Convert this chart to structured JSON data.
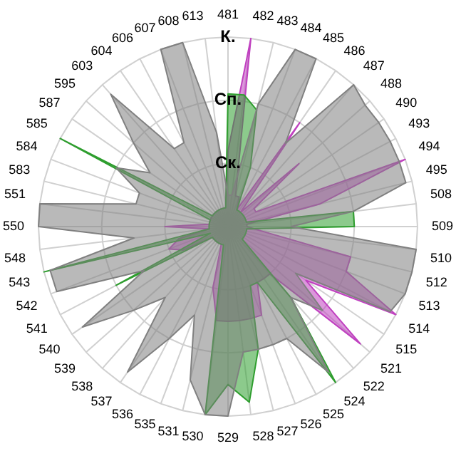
{
  "chart_data": {
    "type": "radar",
    "categories": [
      "481",
      "482",
      "483",
      "484",
      "485",
      "486",
      "487",
      "488",
      "490",
      "493",
      "494",
      "495",
      "508",
      "509",
      "510",
      "512",
      "513",
      "514",
      "515",
      "521",
      "522",
      "524",
      "525",
      "526",
      "527",
      "528",
      "529",
      "530",
      "531",
      "535",
      "536",
      "537",
      "538",
      "539",
      "540",
      "541",
      "542",
      "543",
      "548",
      "550",
      "551",
      "583",
      "584",
      "585",
      "587",
      "595",
      "603",
      "604",
      "606",
      "607",
      "608",
      "613"
    ],
    "ylim": [
      0,
      3
    ],
    "yticks": [
      {
        "value": 1,
        "label": "Ск."
      },
      {
        "value": 2,
        "label": "Сп."
      },
      {
        "value": 3,
        "label": "К."
      }
    ],
    "grid": true,
    "legend": false,
    "marker": "none",
    "series": [
      {
        "color": "#808080",
        "values": [
          0.5,
          0.5,
          2.0,
          3.0,
          3.0,
          1.6,
          3.0,
          2.9,
          2.9,
          2.9,
          2.9,
          2.9,
          2.0,
          1.0,
          3.0,
          3.0,
          3.0,
          2.9,
          1.3,
          2.0,
          1.5,
          2.8,
          2.0,
          2.0,
          2.0,
          2.0,
          3.0,
          3.0,
          2.5,
          1.5,
          2.0,
          2.8,
          1.5,
          2.0,
          2.8,
          1.5,
          2.9,
          2.9,
          1.5,
          3.0,
          3.0,
          1.5,
          1.5,
          2.0,
          1.5,
          2.0,
          2.8,
          1.5,
          1.5,
          3.0,
          3.0,
          1.5
        ]
      },
      {
        "color": "#2e9e2e",
        "values": [
          2.1,
          2.1,
          1.9,
          1.0,
          0.3,
          0.3,
          0.3,
          0.3,
          0.3,
          0.3,
          0.3,
          0.3,
          2.0,
          2.0,
          0.3,
          0.3,
          0.3,
          0.3,
          0.3,
          0.3,
          1.5,
          3.0,
          1.0,
          1.0,
          2.0,
          2.8,
          2.5,
          3.0,
          0.3,
          0.3,
          0.3,
          0.3,
          0.3,
          0.3,
          0.3,
          2.0,
          0.3,
          3.0,
          0.3,
          0.3,
          0.3,
          0.3,
          0.3,
          3.0,
          0.3,
          0.3,
          0.3,
          0.3,
          0.3,
          0.3,
          0.3,
          0.3
        ]
      },
      {
        "color": "#c040c0",
        "values": [
          1.2,
          3.0,
          0.5,
          0.5,
          0.3,
          2.0,
          0.3,
          1.5,
          0.5,
          0.5,
          3.0,
          1.5,
          0.3,
          0.3,
          0.5,
          2.0,
          2.0,
          3.0,
          1.5,
          2.8,
          1.0,
          1.0,
          1.0,
          1.5,
          1.5,
          1.5,
          1.5,
          1.5,
          1.0,
          0.3,
          0.3,
          0.3,
          0.3,
          0.3,
          0.3,
          0.8,
          1.0,
          0.8,
          0.3,
          1.0,
          0.3,
          0.3,
          0.3,
          0.3,
          0.3,
          0.3,
          0.3,
          0.3,
          0.3,
          0.3,
          0.3,
          0.3
        ]
      }
    ]
  }
}
